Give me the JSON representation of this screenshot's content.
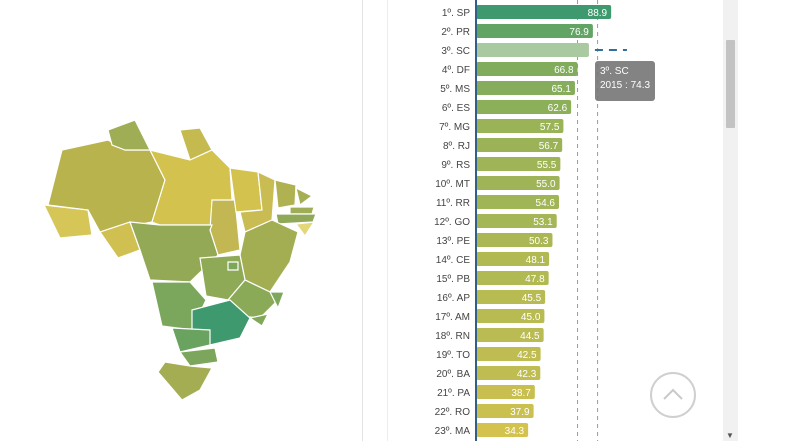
{
  "chart_data": {
    "type": "bar",
    "orientation": "horizontal",
    "categories": [
      "1º. SP",
      "2º. PR",
      "3º. SC",
      "4º. DF",
      "5º. MS",
      "6º. ES",
      "7º. MG",
      "8º. RJ",
      "9º. RS",
      "10º. MT",
      "11º. RR",
      "12º. GO",
      "13º. PE",
      "14º. CE",
      "15º. PB",
      "16º. AP",
      "17º. AM",
      "18º. RN",
      "19º. TO",
      "20º. BA",
      "21º. PA",
      "22º. RO",
      "23º. MA"
    ],
    "values": [
      88.9,
      76.9,
      74.3,
      66.8,
      65.1,
      62.6,
      57.5,
      56.7,
      55.5,
      55.0,
      54.6,
      53.1,
      50.3,
      48.1,
      47.8,
      45.5,
      45.0,
      44.5,
      42.5,
      42.3,
      38.7,
      37.9,
      34.3
    ],
    "value_labels": [
      "88.9",
      "76.9",
      "",
      "66.8",
      "65.1",
      "62.6",
      "57.5",
      "56.7",
      "55.5",
      "55.0",
      "54.6",
      "53.1",
      "50.3",
      "48.1",
      "47.8",
      "45.5",
      "45.0",
      "44.5",
      "42.5",
      "42.3",
      "38.7",
      "37.9",
      "34.3"
    ],
    "highlighted_index": 2,
    "xlim": [
      0,
      100
    ],
    "reference_lines": [
      66.8,
      80.0
    ],
    "colors": {
      "high": "#3e9a6e",
      "mid": "#8fb058",
      "low": "#d3c24e",
      "highlight": "#a9c9a0"
    },
    "title": "",
    "xlabel": "",
    "ylabel": ""
  },
  "tooltip": {
    "line1": "3º. SC",
    "line2": "2015 : 74.3"
  },
  "map": {
    "colors": {
      "north": "#b9b44d",
      "northeast": "#c4b84f",
      "center_west": "#93ab55",
      "southeast": "#7fa75c",
      "sao_paulo": "#3e9a6e",
      "south": "#7aa55c"
    }
  },
  "icons": {
    "back_to_top": "chevron-up-icon",
    "scroll_down": "triangle-down-icon"
  }
}
